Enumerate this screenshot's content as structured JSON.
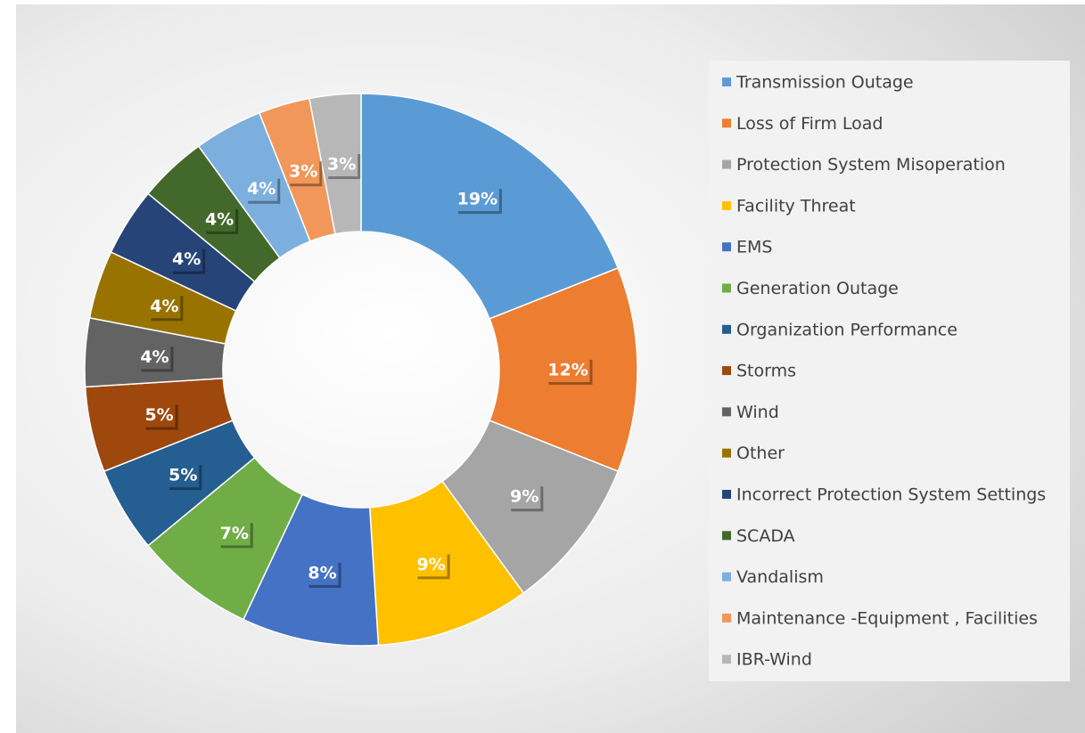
{
  "chart_data": {
    "type": "donut",
    "categories": [
      "Transmission Outage",
      "Loss of Firm Load",
      "Protection System Misoperation",
      "Facility Threat",
      "EMS",
      "Generation Outage",
      "Organization Performance",
      "Storms",
      "Wind",
      "Other",
      "Incorrect Protection System Settings",
      "SCADA",
      "Vandalism",
      "Maintenance -Equipment , Facilities",
      "IBR-Wind"
    ],
    "values": [
      19,
      12,
      9,
      9,
      8,
      7,
      5,
      5,
      4,
      4,
      4,
      4,
      4,
      3,
      3
    ],
    "value_labels": [
      "19%",
      "12%",
      "9%",
      "9%",
      "8%",
      "7%",
      "5%",
      "5%",
      "4%",
      "4%",
      "4%",
      "4%",
      "4%",
      "3%",
      "3%"
    ],
    "colors": [
      "#5b9bd5",
      "#ed7d31",
      "#a5a5a5",
      "#ffc000",
      "#4472c4",
      "#70ad47",
      "#255e91",
      "#9e480e",
      "#636363",
      "#997300",
      "#264478",
      "#43682b",
      "#7cafdd",
      "#f1975a",
      "#b7b7b7"
    ],
    "legend": "right"
  }
}
